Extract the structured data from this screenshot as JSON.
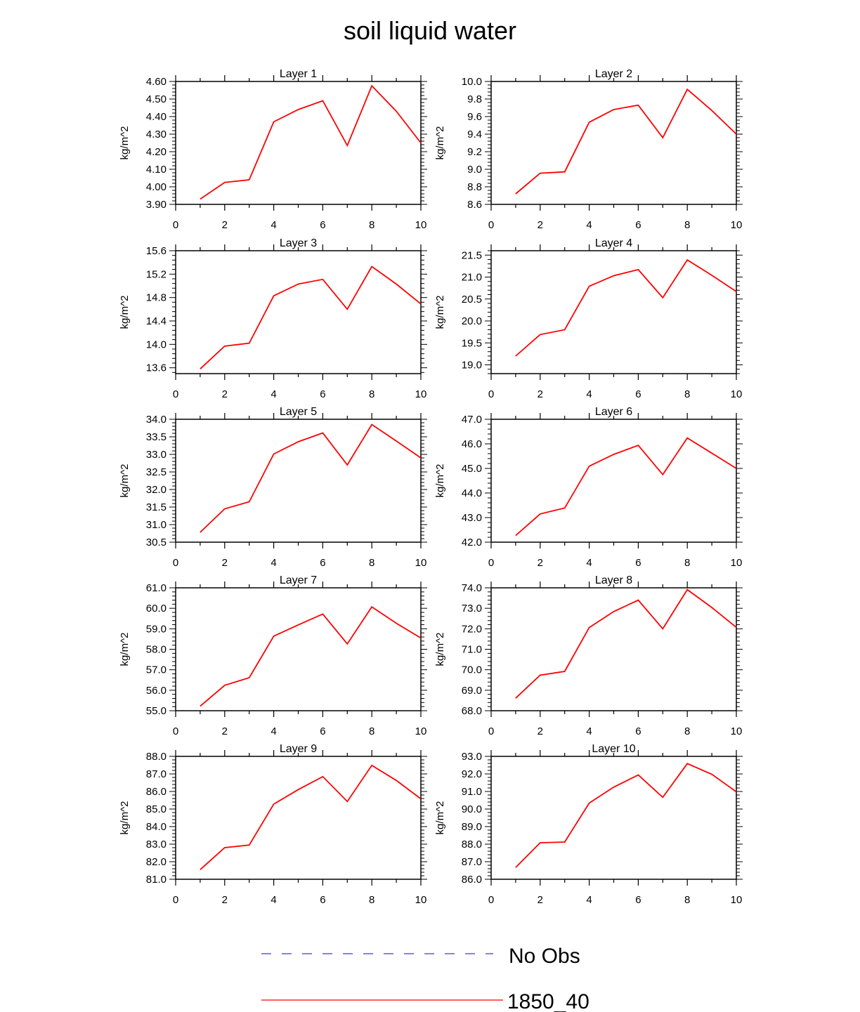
{
  "title": "soil liquid water",
  "legend": [
    {
      "label": "No Obs",
      "color": "#3b3bd6",
      "dash": true
    },
    {
      "label": "1850_40",
      "color": "#ff0000",
      "dash": false
    }
  ],
  "chart_data": [
    {
      "type": "line",
      "title": "Layer 1",
      "ylabel": "kg/m^2",
      "xlim": [
        0,
        10
      ],
      "ylim": [
        3.9,
        4.6
      ],
      "xticks": [
        "0",
        "2",
        "4",
        "6",
        "8",
        "10"
      ],
      "yticks": [
        "3.90",
        "4.00",
        "4.10",
        "4.20",
        "4.30",
        "4.40",
        "4.50",
        "4.60"
      ],
      "series": [
        {
          "name": "1850_40",
          "x": [
            1,
            2,
            3,
            4,
            5,
            6,
            7,
            8,
            9,
            10
          ],
          "y": [
            3.93,
            4.025,
            4.04,
            4.37,
            4.44,
            4.49,
            4.235,
            4.575,
            4.43,
            4.25
          ]
        }
      ]
    },
    {
      "type": "line",
      "title": "Layer 2",
      "ylabel": "kg/m^2",
      "xlim": [
        0,
        10
      ],
      "ylim": [
        8.6,
        10.0
      ],
      "xticks": [
        "0",
        "2",
        "4",
        "6",
        "8",
        "10"
      ],
      "yticks": [
        "8.6",
        "8.8",
        "9.0",
        "9.2",
        "9.4",
        "9.6",
        "9.8",
        "10.0"
      ],
      "series": [
        {
          "name": "1850_40",
          "x": [
            1,
            2,
            3,
            4,
            5,
            6,
            7,
            8,
            9,
            10
          ],
          "y": [
            8.72,
            8.955,
            8.97,
            9.535,
            9.68,
            9.73,
            9.36,
            9.91,
            9.67,
            9.4
          ]
        }
      ]
    },
    {
      "type": "line",
      "title": "Layer 3",
      "ylabel": "kg/m^2",
      "xlim": [
        0,
        10
      ],
      "ylim": [
        13.5,
        15.6
      ],
      "xticks": [
        "0",
        "2",
        "4",
        "6",
        "8",
        "10"
      ],
      "yticks": [
        "13.6",
        "14.0",
        "14.4",
        "14.8",
        "15.2",
        "15.6"
      ],
      "series": [
        {
          "name": "1850_40",
          "x": [
            1,
            2,
            3,
            4,
            5,
            6,
            7,
            8,
            9,
            10
          ],
          "y": [
            13.58,
            13.97,
            14.02,
            14.83,
            15.03,
            15.11,
            14.6,
            15.33,
            15.03,
            14.69
          ]
        }
      ]
    },
    {
      "type": "line",
      "title": "Layer 4",
      "ylabel": "kg/m^2",
      "xlim": [
        0,
        10
      ],
      "ylim": [
        18.8,
        21.6
      ],
      "xticks": [
        "0",
        "2",
        "4",
        "6",
        "8",
        "10"
      ],
      "yticks": [
        "19.0",
        "19.5",
        "20.0",
        "20.5",
        "21.0",
        "21.5"
      ],
      "series": [
        {
          "name": "1850_40",
          "x": [
            1,
            2,
            3,
            4,
            5,
            6,
            7,
            8,
            9,
            10
          ],
          "y": [
            19.2,
            19.69,
            19.8,
            20.79,
            21.03,
            21.17,
            20.53,
            21.39,
            21.04,
            20.67
          ]
        }
      ]
    },
    {
      "type": "line",
      "title": "Layer 5",
      "ylabel": "kg/m^2",
      "xlim": [
        0,
        10
      ],
      "ylim": [
        30.5,
        34.0
      ],
      "xticks": [
        "0",
        "2",
        "4",
        "6",
        "8",
        "10"
      ],
      "yticks": [
        "30.5",
        "31.0",
        "31.5",
        "32.0",
        "32.5",
        "33.0",
        "33.5",
        "34.0"
      ],
      "series": [
        {
          "name": "1850_40",
          "x": [
            1,
            2,
            3,
            4,
            5,
            6,
            7,
            8,
            9,
            10
          ],
          "y": [
            30.78,
            31.45,
            31.65,
            33.01,
            33.36,
            33.61,
            32.7,
            33.85,
            33.38,
            32.9
          ]
        }
      ]
    },
    {
      "type": "line",
      "title": "Layer 6",
      "ylabel": "kg/m^2",
      "xlim": [
        0,
        10
      ],
      "ylim": [
        42.0,
        47.0
      ],
      "xticks": [
        "0",
        "2",
        "4",
        "6",
        "8",
        "10"
      ],
      "yticks": [
        "42.0",
        "43.0",
        "44.0",
        "45.0",
        "46.0",
        "47.0"
      ],
      "series": [
        {
          "name": "1850_40",
          "x": [
            1,
            2,
            3,
            4,
            5,
            6,
            7,
            8,
            9,
            10
          ],
          "y": [
            42.27,
            43.15,
            43.39,
            45.09,
            45.57,
            45.94,
            44.75,
            46.24,
            45.62,
            45.0
          ]
        }
      ]
    },
    {
      "type": "line",
      "title": "Layer 7",
      "ylabel": "kg/m^2",
      "xlim": [
        0,
        10
      ],
      "ylim": [
        55.0,
        61.0
      ],
      "xticks": [
        "0",
        "2",
        "4",
        "6",
        "8",
        "10"
      ],
      "yticks": [
        "55.0",
        "56.0",
        "57.0",
        "58.0",
        "59.0",
        "60.0",
        "61.0"
      ],
      "series": [
        {
          "name": "1850_40",
          "x": [
            1,
            2,
            3,
            4,
            5,
            6,
            7,
            8,
            9,
            10
          ],
          "y": [
            55.22,
            56.24,
            56.61,
            58.64,
            59.19,
            59.72,
            58.26,
            60.07,
            59.27,
            58.55
          ]
        }
      ]
    },
    {
      "type": "line",
      "title": "Layer 8",
      "ylabel": "kg/m^2",
      "xlim": [
        0,
        10
      ],
      "ylim": [
        68.0,
        74.0
      ],
      "xticks": [
        "0",
        "2",
        "4",
        "6",
        "8",
        "10"
      ],
      "yticks": [
        "68.0",
        "69.0",
        "70.0",
        "71.0",
        "72.0",
        "73.0",
        "74.0"
      ],
      "series": [
        {
          "name": "1850_40",
          "x": [
            1,
            2,
            3,
            4,
            5,
            6,
            7,
            8,
            9,
            10
          ],
          "y": [
            68.61,
            69.74,
            69.92,
            72.06,
            72.84,
            73.4,
            72.0,
            73.91,
            73.04,
            72.07
          ]
        }
      ]
    },
    {
      "type": "line",
      "title": "Layer 9",
      "ylabel": "kg/m^2",
      "xlim": [
        0,
        10
      ],
      "ylim": [
        81.0,
        88.0
      ],
      "xticks": [
        "0",
        "2",
        "4",
        "6",
        "8",
        "10"
      ],
      "yticks": [
        "81.0",
        "82.0",
        "83.0",
        "84.0",
        "85.0",
        "86.0",
        "87.0",
        "88.0"
      ],
      "series": [
        {
          "name": "1850_40",
          "x": [
            1,
            2,
            3,
            4,
            5,
            6,
            7,
            8,
            9,
            10
          ],
          "y": [
            81.55,
            82.8,
            82.95,
            85.28,
            86.11,
            86.85,
            85.43,
            87.49,
            86.63,
            85.58
          ]
        }
      ]
    },
    {
      "type": "line",
      "title": "Layer 10",
      "ylabel": "kg/m^2",
      "xlim": [
        0,
        10
      ],
      "ylim": [
        86.0,
        93.0
      ],
      "xticks": [
        "0",
        "2",
        "4",
        "6",
        "8",
        "10"
      ],
      "yticks": [
        "86.0",
        "87.0",
        "88.0",
        "89.0",
        "90.0",
        "91.0",
        "92.0",
        "93.0"
      ],
      "series": [
        {
          "name": "1850_40",
          "x": [
            1,
            2,
            3,
            4,
            5,
            6,
            7,
            8,
            9,
            10
          ],
          "y": [
            86.67,
            88.08,
            88.12,
            90.34,
            91.25,
            91.94,
            90.67,
            92.59,
            91.98,
            90.98
          ]
        }
      ]
    }
  ]
}
